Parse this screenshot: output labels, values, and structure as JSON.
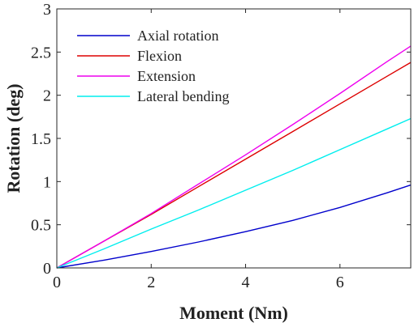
{
  "chart_data": {
    "type": "line",
    "title": "",
    "xlabel": "Moment (Nm)",
    "ylabel": "Rotation (deg)",
    "xlim": [
      0,
      7.5
    ],
    "ylim": [
      0,
      3
    ],
    "x_ticks": [
      "0",
      "2",
      "4",
      "6"
    ],
    "y_ticks": [
      "0",
      "0.5",
      "1",
      "1.5",
      "2",
      "2.5",
      "3"
    ],
    "grid": false,
    "legend_position": "top-left",
    "series": [
      {
        "name": "Axial rotation",
        "color": "#0000cc",
        "points": [
          [
            0,
            0
          ],
          [
            1,
            0.09
          ],
          [
            2,
            0.19
          ],
          [
            3,
            0.3
          ],
          [
            4,
            0.42
          ],
          [
            5,
            0.55
          ],
          [
            6,
            0.7
          ],
          [
            7,
            0.87
          ],
          [
            7.5,
            0.96
          ]
        ]
      },
      {
        "name": "Flexion",
        "color": "#dd0000",
        "points": [
          [
            0,
            0
          ],
          [
            1,
            0.31
          ],
          [
            2,
            0.62
          ],
          [
            3,
            0.94
          ],
          [
            4,
            1.26
          ],
          [
            5,
            1.58
          ],
          [
            6,
            1.9
          ],
          [
            7,
            2.22
          ],
          [
            7.5,
            2.38
          ]
        ]
      },
      {
        "name": "Extension",
        "color": "#ee00ee",
        "points": [
          [
            0,
            0
          ],
          [
            1,
            0.31
          ],
          [
            2,
            0.63
          ],
          [
            3,
            0.97
          ],
          [
            4,
            1.31
          ],
          [
            5,
            1.66
          ],
          [
            6,
            2.02
          ],
          [
            7,
            2.39
          ],
          [
            7.5,
            2.57
          ]
        ]
      },
      {
        "name": "Lateral bending",
        "color": "#00eeee",
        "points": [
          [
            0,
            0
          ],
          [
            1,
            0.22
          ],
          [
            2,
            0.45
          ],
          [
            3,
            0.67
          ],
          [
            4,
            0.9
          ],
          [
            5,
            1.13
          ],
          [
            6,
            1.37
          ],
          [
            7,
            1.61
          ],
          [
            7.5,
            1.73
          ]
        ]
      }
    ]
  }
}
